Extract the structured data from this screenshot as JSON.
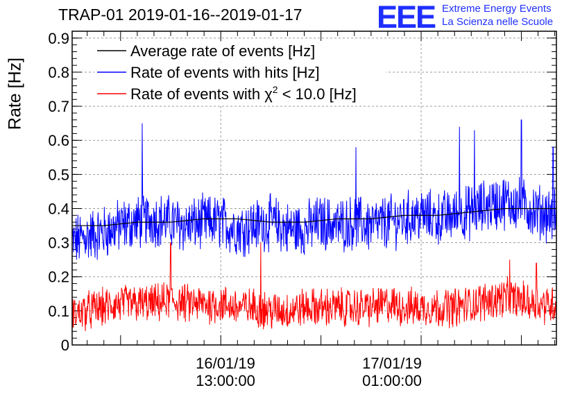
{
  "chart_data": {
    "type": "line",
    "title": "TRAP-01 2019-01-16--2019-01-17",
    "logo": {
      "mark": "EEE",
      "line1": "Extreme Energy Events",
      "line2": "La Scienza nelle Scuole",
      "color": "#1f2fff"
    },
    "ylabel": "Rate [Hz]",
    "xlabel": "",
    "ylim": [
      0,
      0.92
    ],
    "yticks": [
      "0",
      "0.1",
      "0.2",
      "0.3",
      "0.4",
      "0.5",
      "0.6",
      "0.7",
      "0.8",
      "0.9"
    ],
    "xlim_hours": [
      4.1,
      33.1
    ],
    "xticks": [
      {
        "hour": 13,
        "date": "16/01/19",
        "time": "13:00:00"
      },
      {
        "hour": 25,
        "date": "17/01/19",
        "time": "01:00:00"
      }
    ],
    "grid": true,
    "legend_position": "top-left",
    "series": [
      {
        "name": "Average rate of events [Hz]",
        "color": "#000000",
        "x_hours": [
          4.1,
          6,
          8,
          10,
          12,
          14,
          16,
          18,
          20,
          22,
          24,
          26,
          28,
          30,
          32,
          33.1
        ],
        "values": [
          0.35,
          0.35,
          0.36,
          0.36,
          0.37,
          0.37,
          0.36,
          0.36,
          0.37,
          0.37,
          0.38,
          0.38,
          0.39,
          0.4,
          0.4,
          0.4
        ]
      },
      {
        "name": "Rate of events with hits [Hz]",
        "color": "#0000ff",
        "x_hours": [
          4.1,
          5,
          6,
          7,
          8,
          9,
          10,
          11,
          12,
          13,
          14,
          15,
          16,
          17,
          18,
          19,
          20,
          21,
          22,
          23,
          24,
          25,
          26,
          27,
          28,
          29,
          30,
          31,
          32,
          33.1
        ],
        "values": [
          0.3,
          0.32,
          0.33,
          0.35,
          0.36,
          0.37,
          0.36,
          0.35,
          0.36,
          0.36,
          0.34,
          0.35,
          0.36,
          0.34,
          0.34,
          0.36,
          0.35,
          0.36,
          0.35,
          0.36,
          0.37,
          0.38,
          0.37,
          0.38,
          0.39,
          0.41,
          0.42,
          0.41,
          0.39,
          0.38
        ],
        "noise": 0.07,
        "peaks": [
          [
            8.3,
            0.65
          ],
          [
            21.1,
            0.58
          ],
          [
            27.3,
            0.64
          ],
          [
            28.2,
            0.63
          ],
          [
            31.0,
            0.66
          ],
          [
            32.9,
            0.58
          ]
        ]
      },
      {
        "name": "Rate of events with χ² < 10.0 [Hz]",
        "label_text": "Rate of events with",
        "label_chi": "χ",
        "label_sup": "2",
        "label_rest": "< 10.0 [Hz]",
        "color": "#ff0000",
        "x_hours": [
          4.1,
          5,
          6,
          7,
          8,
          9,
          10,
          11,
          12,
          13,
          14,
          15,
          16,
          17,
          18,
          19,
          20,
          21,
          22,
          23,
          24,
          25,
          26,
          27,
          28,
          29,
          30,
          31,
          32,
          33.1
        ],
        "values": [
          0.09,
          0.1,
          0.11,
          0.12,
          0.12,
          0.12,
          0.13,
          0.12,
          0.12,
          0.12,
          0.11,
          0.11,
          0.1,
          0.1,
          0.11,
          0.11,
          0.11,
          0.11,
          0.11,
          0.12,
          0.11,
          0.11,
          0.11,
          0.11,
          0.12,
          0.13,
          0.14,
          0.13,
          0.12,
          0.12
        ],
        "noise": 0.05,
        "peaks": [
          [
            10.0,
            0.3
          ],
          [
            15.4,
            0.3
          ],
          [
            30.3,
            0.25
          ],
          [
            31.9,
            0.24
          ]
        ]
      }
    ]
  }
}
